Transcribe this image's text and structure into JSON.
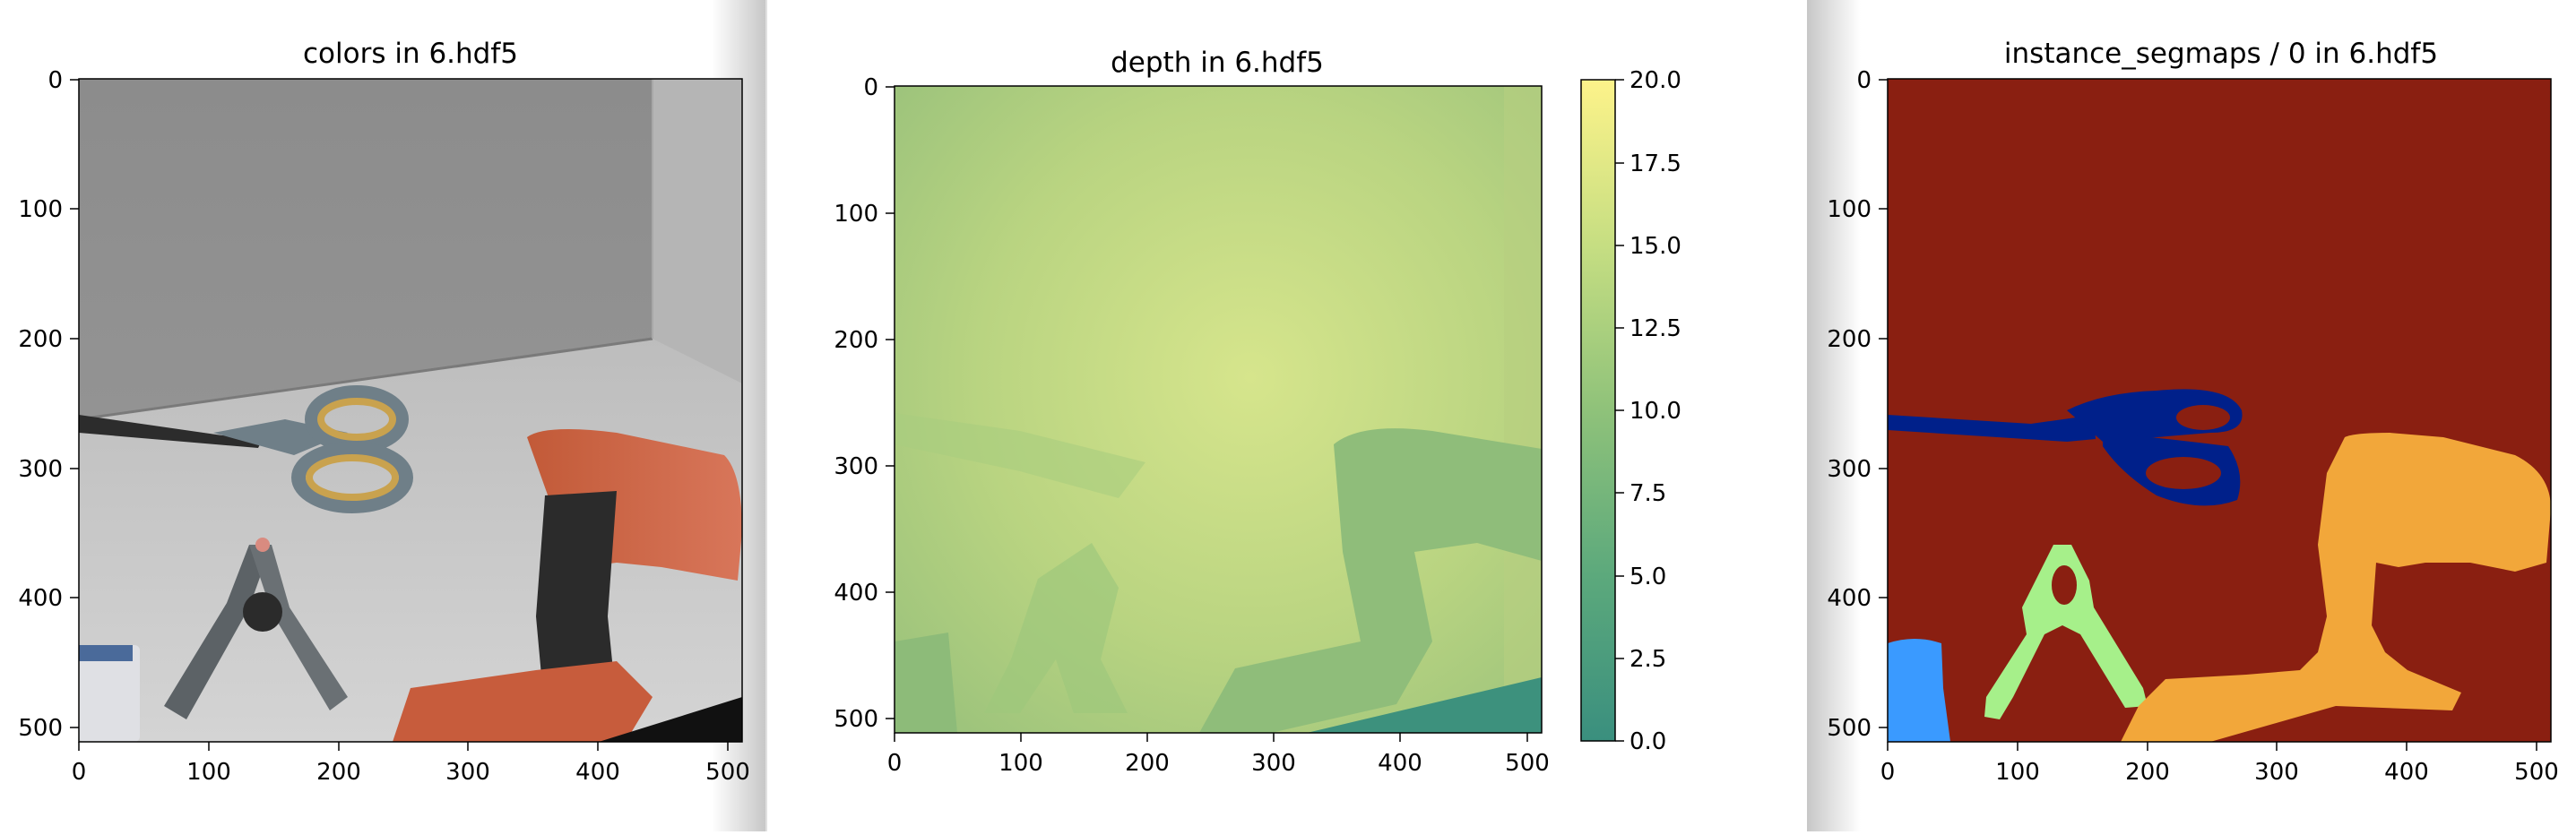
{
  "figure": {
    "panels": [
      {
        "title": "colors in 6.hdf5"
      },
      {
        "title": "depth in 6.hdf5"
      },
      {
        "title": "instance_segmaps / 0 in 6.hdf5"
      }
    ],
    "axis_ticks": {
      "x": [
        "0",
        "100",
        "200",
        "300",
        "400",
        "500"
      ],
      "y": [
        "0",
        "100",
        "200",
        "300",
        "400",
        "500"
      ]
    },
    "colorbar": {
      "ticks": [
        "0.0",
        "2.5",
        "5.0",
        "7.5",
        "10.0",
        "12.5",
        "15.0",
        "17.5",
        "20.0"
      ],
      "range": [
        0,
        20
      ]
    },
    "segment_colors": {
      "background": "#8a1f11",
      "scissors": "#00208a",
      "clamp": "#a6f08a",
      "drill": "#f2a73a",
      "bottle": "#3a9aff"
    }
  },
  "chart_data": [
    {
      "type": "heatmap",
      "title": "colors in 6.hdf5",
      "xlim": [
        0,
        511
      ],
      "ylim": [
        511,
        0
      ],
      "xticks": [
        0,
        100,
        200,
        300,
        400,
        500
      ],
      "yticks": [
        0,
        100,
        200,
        300,
        400,
        500
      ]
    },
    {
      "type": "heatmap",
      "title": "depth in 6.hdf5",
      "xlim": [
        0,
        511
      ],
      "ylim": [
        511,
        0
      ],
      "xticks": [
        0,
        100,
        200,
        300,
        400,
        500
      ],
      "yticks": [
        0,
        100,
        200,
        300,
        400,
        500
      ],
      "colorbar_range": [
        0,
        20
      ],
      "colorbar_ticks": [
        0.0,
        2.5,
        5.0,
        7.5,
        10.0,
        12.5,
        15.0,
        17.5,
        20.0
      ]
    },
    {
      "type": "heatmap",
      "title": "instance_segmaps / 0 in 6.hdf5",
      "xlim": [
        0,
        511
      ],
      "ylim": [
        511,
        0
      ],
      "xticks": [
        0,
        100,
        200,
        300,
        400,
        500
      ],
      "yticks": [
        0,
        100,
        200,
        300,
        400,
        500
      ]
    }
  ]
}
